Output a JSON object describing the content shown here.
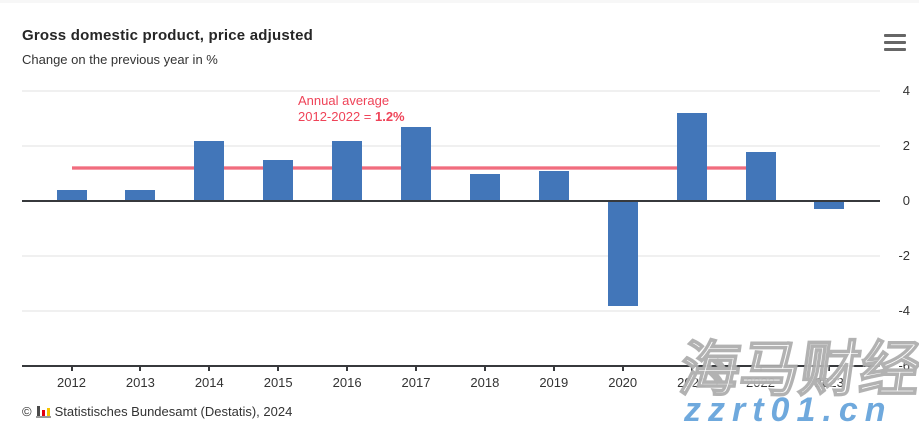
{
  "header": {
    "title": "Gross domestic product, price adjusted",
    "subtitle": "Change on the previous year in %",
    "menu_icon": "hamburger-menu-icon"
  },
  "chart_data": {
    "type": "bar",
    "title": "Gross domestic product, price adjusted",
    "subtitle": "Change on the previous year in %",
    "categories": [
      "2012",
      "2013",
      "2014",
      "2015",
      "2016",
      "2017",
      "2018",
      "2019",
      "2020",
      "2021",
      "2022",
      "2023"
    ],
    "values": [
      0.4,
      0.4,
      2.2,
      1.5,
      2.2,
      2.7,
      1.0,
      1.1,
      -3.8,
      3.2,
      1.8,
      -0.3
    ],
    "ylim": [
      -6,
      4
    ],
    "yticks": [
      4,
      2,
      0,
      -2,
      -4,
      -6
    ],
    "grid": "on",
    "legend": "none",
    "y_axis_side": "right",
    "bar_color": "#4276b9",
    "average_line": {
      "value": 1.2,
      "from_category": "2012",
      "to_category": "2022",
      "color": "#ee5468",
      "label_line1": "Annual average",
      "label_line2_prefix": "2012-2022 = ",
      "label_line2_value": "1.2%",
      "label_color": "#ef4358"
    }
  },
  "footer": {
    "copyright_symbol": "©",
    "logo_icon": "destatis-mini-barchart-icon",
    "source_text": "Statistisches Bundesamt (Destatis), 2024"
  },
  "watermark": {
    "cjk_text": "海马财经",
    "url_text": "zzrt01.cn",
    "url_color": "#6fa9dd"
  }
}
